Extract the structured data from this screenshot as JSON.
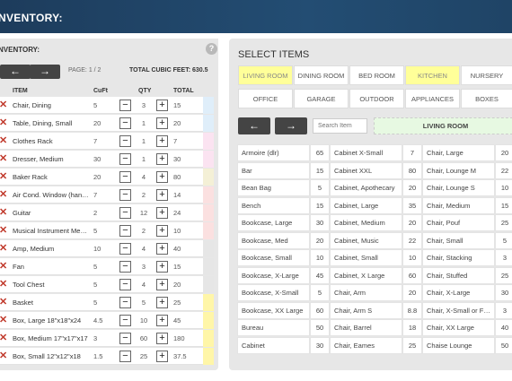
{
  "header": {
    "title": "NVENTORY:"
  },
  "left_panel": {
    "title": "NVENTORY:",
    "help_label": "?",
    "prev_label": "←",
    "next_label": "→",
    "page_info": "PAGE: 1 / 2",
    "cubic_feet": "TOTAL CUBIC FEET: 630.5",
    "columns": {
      "item": "ITEM",
      "cuft": "CuFt",
      "qty": "QTY",
      "total": "TOTAL"
    },
    "remove_label": "✕",
    "minus_label": "−",
    "plus_label": "+",
    "rows": [
      {
        "name": "Chair, Dining",
        "cuft": "5",
        "qty": "3",
        "total": "15",
        "tag": "#dfeefa"
      },
      {
        "name": "Table, Dining, Small",
        "cuft": "20",
        "qty": "1",
        "total": "20",
        "tag": "#dfeefa"
      },
      {
        "name": "Clothes Rack",
        "cuft": "7",
        "qty": "1",
        "total": "7",
        "tag": "#fbe3f1"
      },
      {
        "name": "Dresser, Medium",
        "cuft": "30",
        "qty": "1",
        "total": "30",
        "tag": "#fbe3f1"
      },
      {
        "name": "Baker Rack",
        "cuft": "20",
        "qty": "4",
        "total": "80",
        "tag": "#f4f0d6"
      },
      {
        "name": "Air Cond. Window (han…",
        "cuft": "7",
        "qty": "2",
        "total": "14",
        "tag": "#fbe0e0"
      },
      {
        "name": "Guitar",
        "cuft": "2",
        "qty": "12",
        "total": "24",
        "tag": "#fbe0e0"
      },
      {
        "name": "Musical Instrument Me…",
        "cuft": "5",
        "qty": "2",
        "total": "10",
        "tag": "#fbe0e0"
      },
      {
        "name": "Amp, Medium",
        "cuft": "10",
        "qty": "4",
        "total": "40",
        "tag": "#e6e6e6"
      },
      {
        "name": "Fan",
        "cuft": "5",
        "qty": "3",
        "total": "15",
        "tag": "#e6e6e6"
      },
      {
        "name": "Tool Chest",
        "cuft": "5",
        "qty": "4",
        "total": "20",
        "tag": "#e6e6e6"
      },
      {
        "name": "Basket",
        "cuft": "5",
        "qty": "5",
        "total": "25",
        "tag": "#fff6a8"
      },
      {
        "name": "Box, Large 18\"x18\"x24",
        "cuft": "4.5",
        "qty": "10",
        "total": "45",
        "tag": "#fff6a8"
      },
      {
        "name": "Box, Medium 17\"x17\"x17",
        "cuft": "3",
        "qty": "60",
        "total": "180",
        "tag": "#fff6a8"
      },
      {
        "name": "Box, Small 12\"x12\"x18",
        "cuft": "1.5",
        "qty": "25",
        "total": "37.5",
        "tag": "#fff6a8"
      }
    ]
  },
  "right_panel": {
    "title": "SELECT ITEMS",
    "categories": [
      {
        "label": "LIVING ROOM",
        "active": true
      },
      {
        "label": "DINING ROOM",
        "active": false
      },
      {
        "label": "BED ROOM",
        "active": false
      },
      {
        "label": "KITCHEN",
        "active": true
      },
      {
        "label": "NURSERY",
        "active": false
      },
      {
        "label": "OFFICE",
        "active": false
      },
      {
        "label": "GARAGE",
        "active": false
      },
      {
        "label": "OUTDOOR",
        "active": false
      },
      {
        "label": "APPLIANCES",
        "active": false
      },
      {
        "label": "BOXES",
        "active": false
      }
    ],
    "prev_label": "←",
    "next_label": "→",
    "search_placeholder": "Search Item",
    "current_room": "LIVING ROOM",
    "items": [
      [
        [
          "Armoire (dlr)",
          "65"
        ],
        [
          "Cabinet X-Small",
          "7"
        ],
        [
          "Chair, Large",
          "20"
        ]
      ],
      [
        [
          "Bar",
          "15"
        ],
        [
          "Cabinet XXL",
          "80"
        ],
        [
          "Chair, Lounge M",
          "22"
        ]
      ],
      [
        [
          "Bean Bag",
          "5"
        ],
        [
          "Cabinet, Apothecary",
          "20"
        ],
        [
          "Chair, Lounge S",
          "10"
        ]
      ],
      [
        [
          "Bench",
          "15"
        ],
        [
          "Cabinet, Large",
          "35"
        ],
        [
          "Chair, Medium",
          "15"
        ]
      ],
      [
        [
          "Bookcase, Large",
          "30"
        ],
        [
          "Cabinet, Medium",
          "20"
        ],
        [
          "Chair, Pouf",
          "25"
        ]
      ],
      [
        [
          "Bookcase, Med",
          "20"
        ],
        [
          "Cabinet, Music",
          "22"
        ],
        [
          "Chair, Small",
          "5"
        ]
      ],
      [
        [
          "Bookcase, Small",
          "10"
        ],
        [
          "Cabinet, Small",
          "10"
        ],
        [
          "Chair, Stacking",
          "3"
        ]
      ],
      [
        [
          "Bookcase, X-Large",
          "45"
        ],
        [
          "Cabinet, X Large",
          "60"
        ],
        [
          "Chair, Stuffed",
          "25"
        ]
      ],
      [
        [
          "Bookcase, X-Small",
          "5"
        ],
        [
          "Chair, Arm",
          "20"
        ],
        [
          "Chair, X-Large",
          "30"
        ]
      ],
      [
        [
          "Bookcase, XX Large",
          "60"
        ],
        [
          "Chair, Arm S",
          "8.8"
        ],
        [
          "Chair, X-Small or F…",
          "3"
        ]
      ],
      [
        [
          "Bureau",
          "50"
        ],
        [
          "Chair, Barrel",
          "18"
        ],
        [
          "Chair, XX Large",
          "40"
        ]
      ],
      [
        [
          "Cabinet",
          "30"
        ],
        [
          "Chair, Eames",
          "25"
        ],
        [
          "Chaise Lounge",
          "50"
        ]
      ]
    ]
  }
}
